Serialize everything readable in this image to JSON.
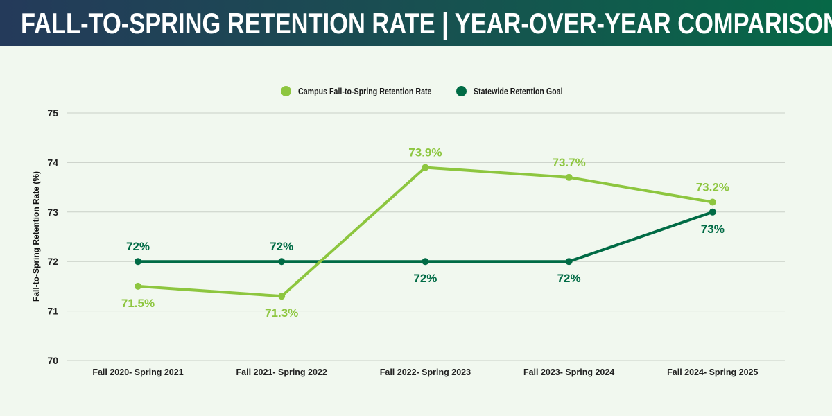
{
  "header": {
    "title": "FALL-TO-SPRING RETENTION RATE | YEAR-OVER-YEAR COMPARISON"
  },
  "colors": {
    "campus": "#8dc63f",
    "statewide": "#006b45",
    "grid": "#c9cfc7",
    "background": "#f1f8ef"
  },
  "chart_data": {
    "type": "line",
    "title": "FALL-TO-SPRING RETENTION RATE | YEAR-OVER-YEAR COMPARISON",
    "xlabel": "",
    "ylabel": "Fall-to-Spring Retention Rate (%)",
    "ylim": [
      70,
      75
    ],
    "yticks": [
      "70",
      "71",
      "72",
      "73",
      "74",
      "75"
    ],
    "grid": true,
    "legend_position": "top-center",
    "categories": [
      "Fall 2020- Spring 2021",
      "Fall 2021- Spring 2022",
      "Fall 2022- Spring 2023",
      "Fall 2023- Spring 2024",
      "Fall 2024- Spring 2025"
    ],
    "series": [
      {
        "name": "Campus Fall-to-Spring Retention Rate",
        "values": [
          71.5,
          71.3,
          73.9,
          73.7,
          73.2
        ],
        "labels": [
          "71.5%",
          "71.3%",
          "73.9%",
          "73.7%",
          "73.2%"
        ]
      },
      {
        "name": "Statewide Retention Goal",
        "values": [
          72,
          72,
          72,
          72,
          73
        ],
        "labels": [
          "72%",
          "72%",
          "72%",
          "72%",
          "73%"
        ]
      }
    ]
  }
}
